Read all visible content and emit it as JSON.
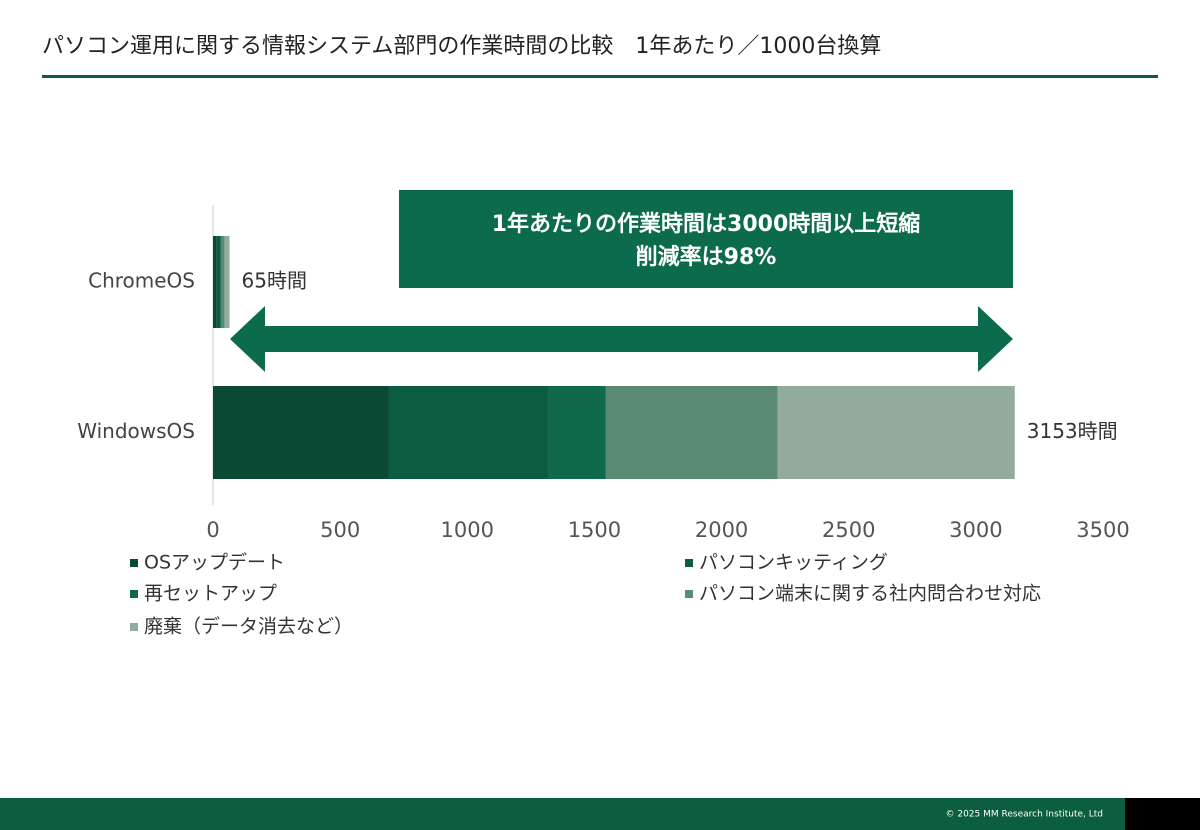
{
  "chart_data": {
    "type": "stacked-bar-horizontal",
    "title": "パソコン運用に関する情報システム部門の作業時間の比較　1年あたり／1000台換算",
    "categories": [
      "ChromeOS",
      "WindowsOS"
    ],
    "series": [
      {
        "name": "OSアップデート",
        "color": "#0a4a35",
        "values": [
          15,
          692
        ]
      },
      {
        "name": "パソコンキッティング",
        "color": "#0b5c40",
        "values": [
          13,
          629
        ]
      },
      {
        "name": "再セットアップ",
        "color": "#10694a",
        "values": [
          5,
          224
        ]
      },
      {
        "name": "パソコン端末に関する社内問合わせ対応",
        "color": "#5a8a72",
        "values": [
          13,
          676
        ]
      },
      {
        "name": "廃棄（データ消去など）",
        "color": "#93ab9d",
        "values": [
          19,
          932
        ]
      }
    ],
    "totals": [
      65,
      3153
    ],
    "value_labels": [
      "65時間",
      "3153時間"
    ],
    "xlim": [
      0,
      3500
    ],
    "xticks": [
      0,
      500,
      1000,
      1500,
      2000,
      2500,
      3000,
      3500
    ],
    "annotation": [
      "1年あたりの作業時間は3000時間以上短縮",
      "削減率は98%"
    ],
    "copyright": "© 2025 MM Research Institute, Ltd"
  }
}
